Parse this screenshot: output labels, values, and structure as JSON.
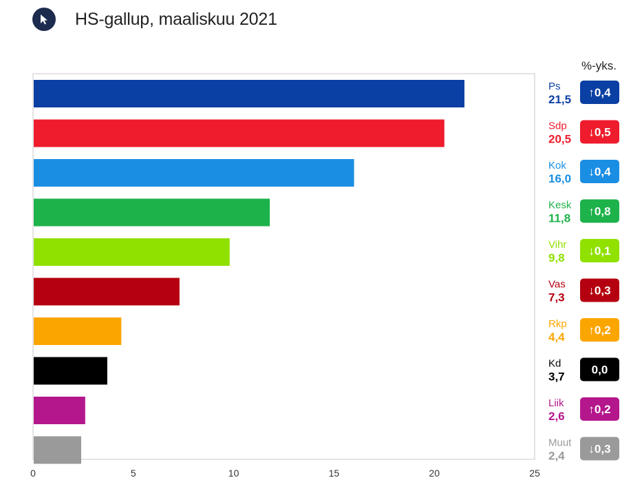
{
  "header": {
    "logo_icon": "cursor-arrow-icon",
    "title": "HS-gallup, maaliskuu 2021"
  },
  "change_unit": "%-yks.",
  "chart_data": {
    "type": "bar",
    "orientation": "horizontal",
    "title": "HS-gallup, maaliskuu 2021",
    "xlim": [
      0,
      25
    ],
    "xticks": [
      0,
      5,
      10,
      15,
      20,
      25
    ],
    "grid": false,
    "change_unit": "%-yks.",
    "categories": [
      "Ps",
      "Sdp",
      "Kok",
      "Kesk",
      "Vihr",
      "Vas",
      "Rkp",
      "Kd",
      "Liik",
      "Muut"
    ],
    "values": [
      21.5,
      20.5,
      16.0,
      11.8,
      9.8,
      7.3,
      4.4,
      3.7,
      2.6,
      2.4
    ],
    "value_labels": [
      "21,5",
      "20,5",
      "16,0",
      "11,8",
      "9,8",
      "7,3",
      "4,4",
      "3,7",
      "2,6",
      "2,4"
    ],
    "changes": [
      "↑0,4",
      "↓0,5",
      "↓0,4",
      "↑0,8",
      "↓0,1",
      "↓0,3",
      "↑0,2",
      "0,0",
      "↑0,2",
      "↓0,3"
    ],
    "change_values": [
      0.4,
      -0.5,
      -0.4,
      0.8,
      -0.1,
      -0.3,
      0.2,
      0.0,
      0.2,
      -0.3
    ],
    "colors": [
      "#0a3fa3",
      "#ee1c2c",
      "#1a8ee3",
      "#1db24a",
      "#90e000",
      "#b5000f",
      "#fba600",
      "#000000",
      "#b4178c",
      "#9a9a9a"
    ]
  }
}
